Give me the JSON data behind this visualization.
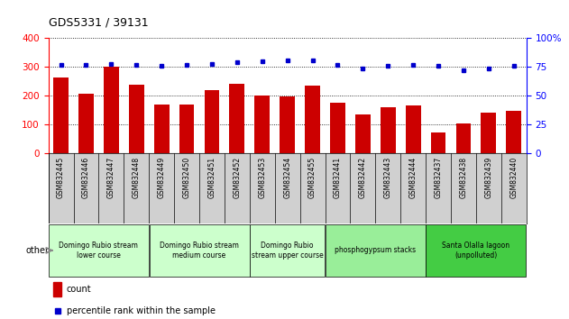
{
  "title": "GDS5331 / 39131",
  "samples": [
    "GSM832445",
    "GSM832446",
    "GSM832447",
    "GSM832448",
    "GSM832449",
    "GSM832450",
    "GSM832451",
    "GSM832452",
    "GSM832453",
    "GSM832454",
    "GSM832455",
    "GSM832441",
    "GSM832442",
    "GSM832443",
    "GSM832444",
    "GSM832437",
    "GSM832438",
    "GSM832439",
    "GSM832440"
  ],
  "counts": [
    262,
    207,
    300,
    238,
    168,
    170,
    220,
    242,
    200,
    196,
    235,
    175,
    136,
    160,
    167,
    72,
    102,
    140,
    147
  ],
  "percentiles": [
    77,
    77,
    78,
    77,
    76,
    77,
    78,
    79,
    80,
    81,
    81,
    77,
    74,
    76,
    77,
    76,
    72,
    74,
    76
  ],
  "bar_color": "#cc0000",
  "dot_color": "#0000cc",
  "left_ylim": [
    0,
    400
  ],
  "right_ylim": [
    0,
    100
  ],
  "left_yticks": [
    0,
    100,
    200,
    300,
    400
  ],
  "right_yticks": [
    0,
    25,
    50,
    75,
    100
  ],
  "groups": [
    {
      "label": "Domingo Rubio stream\nlower course",
      "start": 0,
      "end": 4,
      "color": "#ccffcc"
    },
    {
      "label": "Domingo Rubio stream\nmedium course",
      "start": 4,
      "end": 8,
      "color": "#ccffcc"
    },
    {
      "label": "Domingo Rubio\nstream upper course",
      "start": 8,
      "end": 11,
      "color": "#ccffcc"
    },
    {
      "label": "phosphogypsum stacks",
      "start": 11,
      "end": 15,
      "color": "#99ee99"
    },
    {
      "label": "Santa Olalla lagoon\n(unpolluted)",
      "start": 15,
      "end": 19,
      "color": "#44cc44"
    }
  ],
  "other_label": "other",
  "legend_count_label": "count",
  "legend_pct_label": "percentile rank within the sample",
  "bg_color": "#ffffff",
  "tick_bg_color": "#d0d0d0"
}
